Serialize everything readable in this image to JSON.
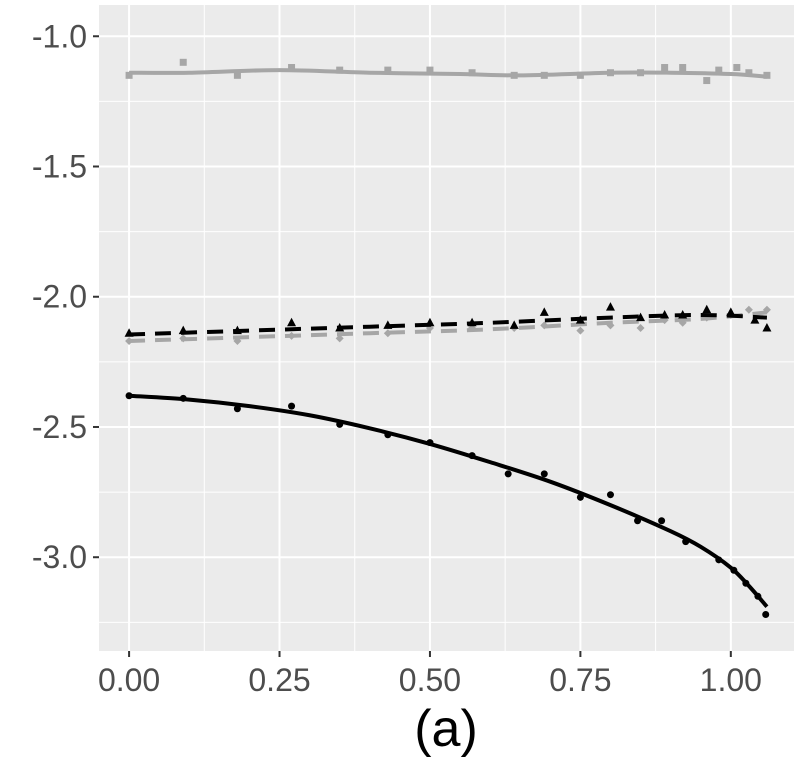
{
  "chart_data": {
    "type": "scatter",
    "title": "",
    "xlabel": "",
    "ylabel": "",
    "caption": "(a)",
    "xlim": [
      -0.05,
      1.105
    ],
    "ylim": [
      -3.36,
      -0.88
    ],
    "x_ticks": [
      0.0,
      0.25,
      0.5,
      0.75,
      1.0
    ],
    "x_tick_labels": [
      "0.00",
      "0.25",
      "0.50",
      "0.75",
      "1.00"
    ],
    "y_ticks": [
      -1.0,
      -1.5,
      -2.0,
      -2.5,
      -3.0
    ],
    "y_tick_labels": [
      "-1.0",
      "-1.5",
      "-2.0",
      "-2.5",
      "-3.0"
    ],
    "panel_background": "#ebebeb",
    "grid_color": "#ffffff",
    "series": [
      {
        "name": "grey-square",
        "color": "#a6a6a6",
        "marker": "square",
        "line": "solid",
        "points": [
          [
            0.0,
            -1.15
          ],
          [
            0.09,
            -1.1
          ],
          [
            0.18,
            -1.15
          ],
          [
            0.27,
            -1.12
          ],
          [
            0.35,
            -1.13
          ],
          [
            0.43,
            -1.13
          ],
          [
            0.5,
            -1.13
          ],
          [
            0.57,
            -1.14
          ],
          [
            0.64,
            -1.15
          ],
          [
            0.69,
            -1.15
          ],
          [
            0.75,
            -1.15
          ],
          [
            0.8,
            -1.14
          ],
          [
            0.85,
            -1.14
          ],
          [
            0.89,
            -1.12
          ],
          [
            0.92,
            -1.12
          ],
          [
            0.96,
            -1.17
          ],
          [
            0.98,
            -1.13
          ],
          [
            1.01,
            -1.12
          ],
          [
            1.03,
            -1.14
          ],
          [
            1.06,
            -1.15
          ]
        ],
        "fit": [
          [
            0.0,
            -1.14
          ],
          [
            0.1,
            -1.14
          ],
          [
            0.25,
            -1.13
          ],
          [
            0.4,
            -1.14
          ],
          [
            0.55,
            -1.145
          ],
          [
            0.65,
            -1.15
          ],
          [
            0.8,
            -1.14
          ],
          [
            0.9,
            -1.14
          ],
          [
            1.0,
            -1.145
          ],
          [
            1.06,
            -1.155
          ]
        ]
      },
      {
        "name": "grey-diamond",
        "color": "#a6a6a6",
        "marker": "diamond",
        "line": "dashed",
        "points": [
          [
            0.0,
            -2.17
          ],
          [
            0.09,
            -2.16
          ],
          [
            0.18,
            -2.17
          ],
          [
            0.27,
            -2.15
          ],
          [
            0.35,
            -2.16
          ],
          [
            0.43,
            -2.14
          ],
          [
            0.5,
            -2.12
          ],
          [
            0.57,
            -2.12
          ],
          [
            0.64,
            -2.12
          ],
          [
            0.69,
            -2.11
          ],
          [
            0.75,
            -2.13
          ],
          [
            0.8,
            -2.11
          ],
          [
            0.85,
            -2.12
          ],
          [
            0.89,
            -2.09
          ],
          [
            0.92,
            -2.1
          ],
          [
            0.96,
            -2.08
          ],
          [
            1.0,
            -2.07
          ],
          [
            1.03,
            -2.05
          ],
          [
            1.06,
            -2.05
          ]
        ],
        "fit": [
          [
            0.0,
            -2.17
          ],
          [
            0.2,
            -2.155
          ],
          [
            0.4,
            -2.14
          ],
          [
            0.6,
            -2.125
          ],
          [
            0.8,
            -2.1
          ],
          [
            0.95,
            -2.085
          ],
          [
            1.06,
            -2.06
          ]
        ]
      },
      {
        "name": "black-triangle",
        "color": "#000000",
        "marker": "triangle",
        "line": "dashed",
        "points": [
          [
            0.0,
            -2.14
          ],
          [
            0.09,
            -2.13
          ],
          [
            0.18,
            -2.13
          ],
          [
            0.27,
            -2.1
          ],
          [
            0.35,
            -2.12
          ],
          [
            0.43,
            -2.11
          ],
          [
            0.5,
            -2.1
          ],
          [
            0.57,
            -2.1
          ],
          [
            0.64,
            -2.11
          ],
          [
            0.69,
            -2.06
          ],
          [
            0.75,
            -2.09
          ],
          [
            0.8,
            -2.04
          ],
          [
            0.85,
            -2.08
          ],
          [
            0.89,
            -2.07
          ],
          [
            0.92,
            -2.07
          ],
          [
            0.96,
            -2.05
          ],
          [
            1.0,
            -2.06
          ],
          [
            1.04,
            -2.09
          ],
          [
            1.06,
            -2.12
          ]
        ],
        "fit": [
          [
            0.0,
            -2.145
          ],
          [
            0.2,
            -2.13
          ],
          [
            0.4,
            -2.115
          ],
          [
            0.6,
            -2.1
          ],
          [
            0.8,
            -2.08
          ],
          [
            0.95,
            -2.07
          ],
          [
            1.06,
            -2.08
          ]
        ]
      },
      {
        "name": "black-circle",
        "color": "#000000",
        "marker": "circle",
        "line": "solid",
        "points": [
          [
            0.0,
            -2.38
          ],
          [
            0.09,
            -2.39
          ],
          [
            0.18,
            -2.43
          ],
          [
            0.27,
            -2.42
          ],
          [
            0.35,
            -2.49
          ],
          [
            0.43,
            -2.53
          ],
          [
            0.5,
            -2.56
          ],
          [
            0.57,
            -2.61
          ],
          [
            0.63,
            -2.68
          ],
          [
            0.69,
            -2.68
          ],
          [
            0.75,
            -2.77
          ],
          [
            0.8,
            -2.76
          ],
          [
            0.845,
            -2.86
          ],
          [
            0.885,
            -2.86
          ],
          [
            0.925,
            -2.94
          ],
          [
            0.98,
            -3.01
          ],
          [
            1.005,
            -3.05
          ],
          [
            1.025,
            -3.1
          ],
          [
            1.045,
            -3.15
          ],
          [
            1.058,
            -3.22
          ]
        ],
        "fit": [
          [
            0.0,
            -2.38
          ],
          [
            0.1,
            -2.395
          ],
          [
            0.2,
            -2.42
          ],
          [
            0.3,
            -2.455
          ],
          [
            0.4,
            -2.505
          ],
          [
            0.5,
            -2.565
          ],
          [
            0.6,
            -2.635
          ],
          [
            0.7,
            -2.71
          ],
          [
            0.8,
            -2.8
          ],
          [
            0.9,
            -2.9
          ],
          [
            0.95,
            -2.96
          ],
          [
            1.0,
            -3.04
          ],
          [
            1.03,
            -3.11
          ],
          [
            1.06,
            -3.19
          ]
        ]
      }
    ]
  }
}
